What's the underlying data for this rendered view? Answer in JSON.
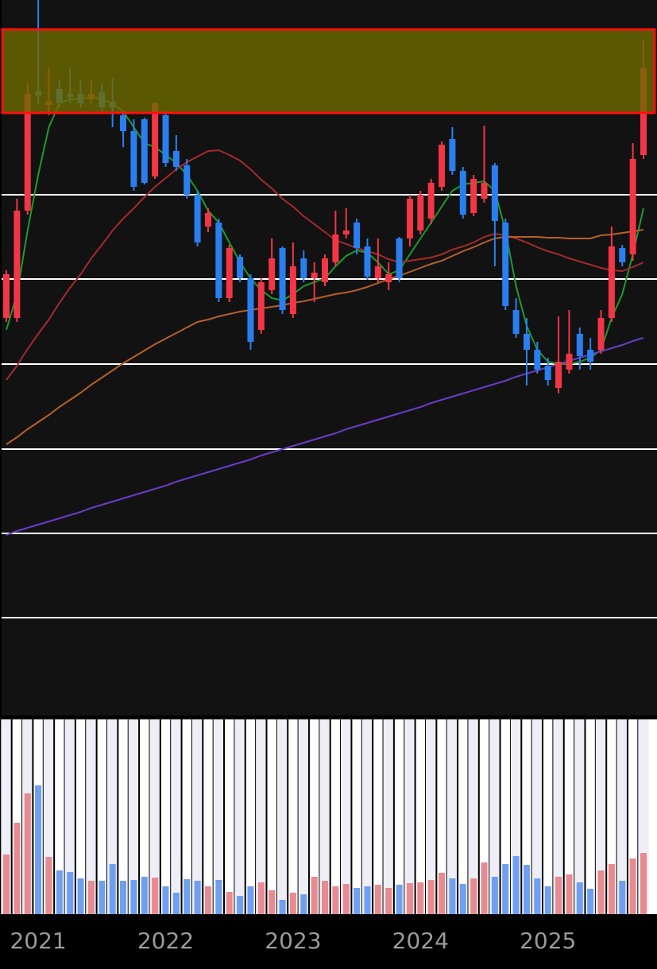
{
  "chart_data": {
    "type": "candlestick",
    "categories": [
      null,
      null,
      null,
      "2021",
      null,
      null,
      null,
      null,
      null,
      null,
      null,
      null,
      null,
      null,
      null,
      "2022",
      null,
      null,
      null,
      null,
      null,
      null,
      null,
      null,
      null,
      null,
      null,
      "2023",
      null,
      null,
      null,
      null,
      null,
      null,
      null,
      null,
      null,
      null,
      null,
      "2024",
      null,
      null,
      null,
      null,
      null,
      null,
      null,
      null,
      null,
      null,
      null,
      "2025",
      null,
      null,
      null,
      null,
      null,
      null,
      null,
      null,
      null
    ],
    "open": [
      500,
      500,
      635,
      785,
      768,
      788,
      782,
      782,
      775,
      784,
      772,
      755,
      735,
      750,
      678,
      755,
      710,
      692,
      655,
      615,
      620,
      525,
      577,
      550,
      485,
      535,
      588,
      505,
      575,
      550,
      545,
      570,
      605,
      620,
      590,
      550,
      545,
      600,
      600,
      610,
      625,
      665,
      725,
      685,
      632,
      650,
      692,
      620,
      510,
      480,
      460,
      440,
      412,
      435,
      480,
      460,
      460,
      500,
      588,
      580,
      705
    ],
    "high": [
      560,
      650,
      795,
      900,
      815,
      800,
      815,
      800,
      800,
      795,
      802,
      760,
      750,
      752,
      772,
      760,
      730,
      700,
      660,
      638,
      625,
      592,
      580,
      555,
      550,
      600,
      590,
      595,
      585,
      570,
      580,
      635,
      638,
      625,
      600,
      600,
      570,
      602,
      655,
      660,
      675,
      722,
      740,
      690,
      680,
      742,
      695,
      625,
      525,
      500,
      470,
      450,
      502,
      510,
      488,
      475,
      510,
      615,
      592,
      720,
      850
    ],
    "low": [
      495,
      495,
      630,
      770,
      755,
      765,
      770,
      765,
      770,
      760,
      740,
      715,
      660,
      668,
      675,
      690,
      685,
      650,
      590,
      608,
      520,
      520,
      545,
      460,
      480,
      530,
      505,
      500,
      545,
      520,
      540,
      565,
      600,
      580,
      548,
      545,
      535,
      545,
      590,
      605,
      618,
      660,
      680,
      625,
      628,
      645,
      565,
      510,
      475,
      415,
      430,
      415,
      405,
      430,
      435,
      435,
      455,
      495,
      565,
      572,
      700
    ],
    "close": [
      555,
      635,
      782,
      780,
      773,
      770,
      778,
      770,
      782,
      765,
      765,
      735,
      665,
      670,
      770,
      695,
      690,
      655,
      595,
      632,
      525,
      588,
      550,
      470,
      545,
      575,
      510,
      565,
      550,
      557,
      575,
      605,
      610,
      588,
      552,
      565,
      555,
      550,
      650,
      655,
      670,
      718,
      685,
      630,
      675,
      670,
      622,
      515,
      480,
      460,
      435,
      422,
      445,
      455,
      452,
      445,
      500,
      590,
      570,
      700,
      815
    ],
    "up_color": "#f23645",
    "down_color": "#2a7ff0",
    "ylim": [
      0,
      900
    ],
    "yticks": [
      123,
      229,
      335,
      442,
      549,
      655
    ],
    "grid": true,
    "zone": [
      758,
      863
    ],
    "zone_color": "#6e6a00",
    "zone_border_color": "#ff1010",
    "series": [
      {
        "color": "#1f9a2a",
        "values": [
          485,
          530,
          610,
          680,
          740,
          770,
          775,
          776,
          778,
          775,
          770,
          760,
          740,
          720,
          715,
          705,
          695,
          680,
          660,
          635,
          620,
          595,
          570,
          550,
          535,
          525,
          522,
          530,
          540,
          545,
          550,
          565,
          578,
          585,
          582,
          570,
          555,
          560,
          580,
          600,
          620,
          640,
          660,
          668,
          670,
          672,
          660,
          610,
          540,
          490,
          460,
          445,
          442,
          442,
          445,
          450,
          460,
          500,
          530,
          580,
          638
        ]
      },
      {
        "color": "#a52a2a",
        "values": [
          422,
          440,
          461,
          480,
          498,
          519,
          538,
          555,
          575,
          592,
          610,
          625,
          638,
          652,
          665,
          676,
          687,
          696,
          703,
          710,
          711,
          705,
          698,
          687,
          674,
          663,
          650,
          640,
          628,
          618,
          608,
          598,
          593,
          588,
          584,
          580,
          574,
          570,
          572,
          574,
          576,
          580,
          586,
          590,
          595,
          602,
          606,
          604,
          600,
          595,
          589,
          584,
          580,
          575,
          571,
          567,
          563,
          560,
          559,
          564,
          570
        ]
      },
      {
        "color": "#b5602a",
        "values": [
          341,
          350,
          360,
          369,
          378,
          388,
          397,
          406,
          416,
          425,
          434,
          443,
          451,
          459,
          467,
          474,
          481,
          488,
          495,
          498,
          502,
          505,
          508,
          510,
          512,
          514,
          516,
          519,
          521,
          524,
          527,
          530,
          532,
          535,
          539,
          544,
          549,
          553,
          558,
          563,
          568,
          572,
          578,
          584,
          589,
          595,
          600,
          602,
          602,
          602,
          602,
          601,
          601,
          600,
          600,
          600,
          604,
          605,
          607,
          609,
          611
        ]
      },
      {
        "color": "#6a3bc8",
        "values": [
          227,
          232,
          236,
          240,
          244,
          248,
          252,
          256,
          261,
          265,
          269,
          273,
          277,
          281,
          285,
          289,
          294,
          298,
          302,
          306,
          310,
          314,
          318,
          322,
          327,
          331,
          335,
          339,
          343,
          347,
          351,
          355,
          360,
          364,
          368,
          372,
          376,
          380,
          384,
          388,
          393,
          397,
          401,
          405,
          409,
          413,
          417,
          421,
          426,
          430,
          434,
          438,
          442,
          446,
          450,
          454,
          458,
          462,
          466,
          471,
          475
        ]
      }
    ],
    "volume": {
      "values": [
        75,
        115,
        152,
        162,
        72,
        55,
        53,
        45,
        42,
        42,
        63,
        42,
        43,
        47,
        46,
        35,
        27,
        44,
        42,
        35,
        43,
        28,
        23,
        35,
        40,
        30,
        18,
        27,
        25,
        47,
        42,
        35,
        38,
        33,
        35,
        37,
        33,
        37,
        39,
        40,
        43,
        52,
        45,
        38,
        45,
        65,
        47,
        63,
        73,
        62,
        45,
        35,
        47,
        50,
        40,
        32,
        55,
        63,
        42,
        70,
        77
      ],
      "ylim": [
        0,
        245
      ],
      "up_color": "#e88a8f",
      "down_color": "#6f9ff0"
    }
  }
}
